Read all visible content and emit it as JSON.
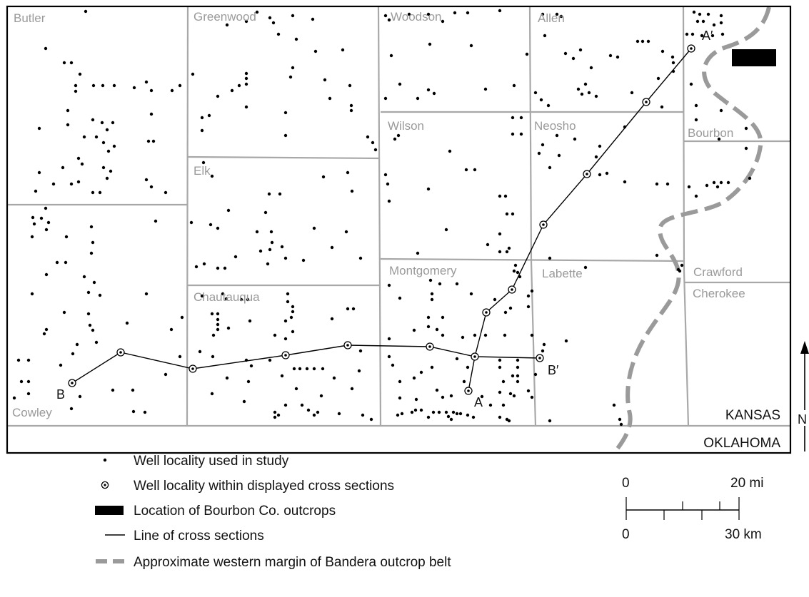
{
  "counties": [
    "Butler",
    "Greenwood",
    "Woodson",
    "Allen",
    "Wilson",
    "Neosho",
    "Bourbon",
    "Elk",
    "Montgomery",
    "Labette",
    "Crawford",
    "Cherokee",
    "Chautauqua",
    "Cowley"
  ],
  "states": {
    "kansas": "KANSAS",
    "oklahoma": "OKLAHOMA"
  },
  "section_ends": {
    "a": "A",
    "a_prime": "A′",
    "b": "B",
    "b_prime": "B′"
  },
  "north_label": "N",
  "legend": {
    "well": "Well locality used in study",
    "section_well": "Well locality within displayed cross sections",
    "outcrops": "Location of Bourbon Co. outcrops",
    "line": "Line of cross sections",
    "margin": "Approximate western margin of Bandera outcrop belt"
  },
  "scale": {
    "mi_zero": "0",
    "mi_end": "20 mi",
    "km_zero": "0",
    "km_end": "30 km"
  },
  "colors": {
    "county_line": "#a8a8a8",
    "county_label": "#9a9a9a",
    "outcrop_margin": "#9a9a9a",
    "outcrop_box": "#000000"
  }
}
